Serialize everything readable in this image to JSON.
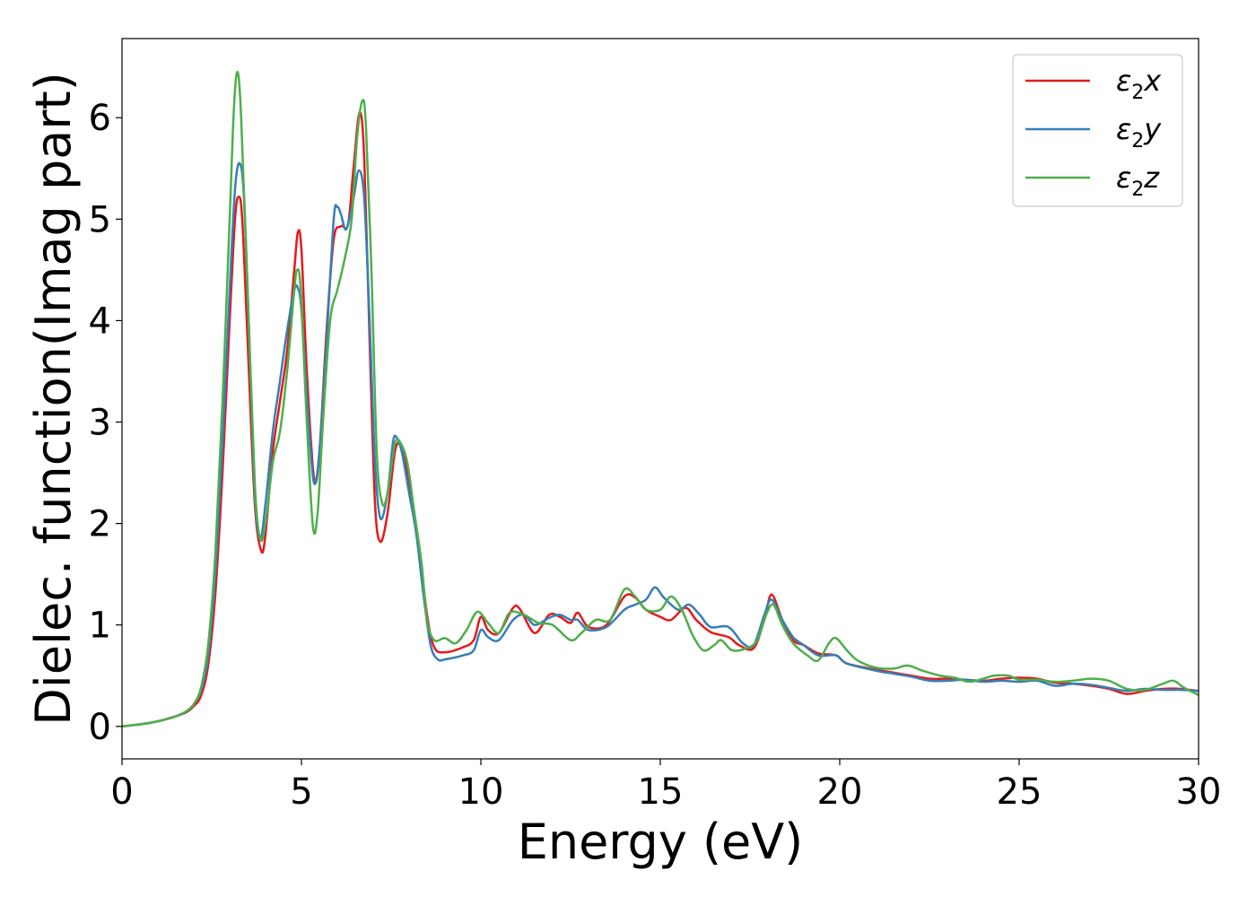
{
  "chart_data": {
    "type": "line",
    "title": "",
    "xlabel": "Energy (eV)",
    "ylabel": "Dielec. function(Imag part)",
    "xlim": [
      0,
      30
    ],
    "ylim": [
      -0.32,
      6.78
    ],
    "xticks": [
      0,
      5,
      10,
      15,
      20,
      25,
      30
    ],
    "xtick_labels": [
      "0",
      "5",
      "10",
      "15",
      "20",
      "25",
      "30"
    ],
    "yticks": [
      0,
      1,
      2,
      3,
      4,
      5,
      6
    ],
    "ytick_labels": [
      "0",
      "1",
      "2",
      "3",
      "4",
      "5",
      "6"
    ],
    "grid": false,
    "legend_position": "top-right",
    "series": [
      {
        "name": "ε₂x",
        "legend_main": "ε",
        "legend_sub": "2",
        "legend_tail": "x",
        "color": "#e41a1c",
        "points": [
          [
            0,
            0
          ],
          [
            0.5,
            0.02
          ],
          [
            1.0,
            0.05
          ],
          [
            1.5,
            0.1
          ],
          [
            1.8,
            0.14
          ],
          [
            2.0,
            0.2
          ],
          [
            2.2,
            0.3
          ],
          [
            2.4,
            0.6
          ],
          [
            2.6,
            1.3
          ],
          [
            2.8,
            2.5
          ],
          [
            3.0,
            4.0
          ],
          [
            3.15,
            5.0
          ],
          [
            3.25,
            5.22
          ],
          [
            3.35,
            5.0
          ],
          [
            3.5,
            3.8
          ],
          [
            3.7,
            2.2
          ],
          [
            3.88,
            1.73
          ],
          [
            4.0,
            1.9
          ],
          [
            4.2,
            2.7
          ],
          [
            4.4,
            3.2
          ],
          [
            4.6,
            3.7
          ],
          [
            4.8,
            4.5
          ],
          [
            4.9,
            4.87
          ],
          [
            5.0,
            4.7
          ],
          [
            5.15,
            3.5
          ],
          [
            5.35,
            2.45
          ],
          [
            5.5,
            2.7
          ],
          [
            5.7,
            3.9
          ],
          [
            5.9,
            4.8
          ],
          [
            6.1,
            4.93
          ],
          [
            6.3,
            4.95
          ],
          [
            6.45,
            5.5
          ],
          [
            6.62,
            6.05
          ],
          [
            6.75,
            5.6
          ],
          [
            6.9,
            3.8
          ],
          [
            7.05,
            2.2
          ],
          [
            7.2,
            1.82
          ],
          [
            7.4,
            2.1
          ],
          [
            7.6,
            2.7
          ],
          [
            7.75,
            2.78
          ],
          [
            7.9,
            2.6
          ],
          [
            8.1,
            2.2
          ],
          [
            8.3,
            1.7
          ],
          [
            8.5,
            1.1
          ],
          [
            8.7,
            0.78
          ],
          [
            9.0,
            0.73
          ],
          [
            9.5,
            0.78
          ],
          [
            9.8,
            0.85
          ],
          [
            10.0,
            1.08
          ],
          [
            10.2,
            0.95
          ],
          [
            10.5,
            0.92
          ],
          [
            10.9,
            1.17
          ],
          [
            11.1,
            1.15
          ],
          [
            11.5,
            0.92
          ],
          [
            11.9,
            1.1
          ],
          [
            12.2,
            1.08
          ],
          [
            12.5,
            1.02
          ],
          [
            12.7,
            1.12
          ],
          [
            13.0,
            0.98
          ],
          [
            13.5,
            1.0
          ],
          [
            14.0,
            1.28
          ],
          [
            14.3,
            1.27
          ],
          [
            14.6,
            1.15
          ],
          [
            15.0,
            1.08
          ],
          [
            15.3,
            1.05
          ],
          [
            15.7,
            1.17
          ],
          [
            16.0,
            1.05
          ],
          [
            16.4,
            0.93
          ],
          [
            16.9,
            0.88
          ],
          [
            17.2,
            0.8
          ],
          [
            17.6,
            0.77
          ],
          [
            17.9,
            1.05
          ],
          [
            18.1,
            1.3
          ],
          [
            18.4,
            1.05
          ],
          [
            18.7,
            0.85
          ],
          [
            19.0,
            0.8
          ],
          [
            19.4,
            0.72
          ],
          [
            19.9,
            0.7
          ],
          [
            20.2,
            0.62
          ],
          [
            21.0,
            0.56
          ],
          [
            21.5,
            0.53
          ],
          [
            22.0,
            0.5
          ],
          [
            22.5,
            0.47
          ],
          [
            23.0,
            0.47
          ],
          [
            23.5,
            0.46
          ],
          [
            24.0,
            0.45
          ],
          [
            24.5,
            0.47
          ],
          [
            25.0,
            0.48
          ],
          [
            25.5,
            0.47
          ],
          [
            26.0,
            0.43
          ],
          [
            26.5,
            0.42
          ],
          [
            27.0,
            0.4
          ],
          [
            27.5,
            0.37
          ],
          [
            28.0,
            0.32
          ],
          [
            28.5,
            0.35
          ],
          [
            29.0,
            0.37
          ],
          [
            29.5,
            0.37
          ],
          [
            30.0,
            0.35
          ]
        ]
      },
      {
        "name": "ε₂y",
        "legend_main": "ε",
        "legend_sub": "2",
        "legend_tail": "y",
        "color": "#377eb8",
        "points": [
          [
            0,
            0
          ],
          [
            0.5,
            0.02
          ],
          [
            1.0,
            0.05
          ],
          [
            1.5,
            0.1
          ],
          [
            1.8,
            0.15
          ],
          [
            2.0,
            0.22
          ],
          [
            2.2,
            0.35
          ],
          [
            2.4,
            0.7
          ],
          [
            2.6,
            1.5
          ],
          [
            2.8,
            2.8
          ],
          [
            3.0,
            4.3
          ],
          [
            3.15,
            5.3
          ],
          [
            3.28,
            5.55
          ],
          [
            3.4,
            5.2
          ],
          [
            3.55,
            3.8
          ],
          [
            3.7,
            2.3
          ],
          [
            3.85,
            1.85
          ],
          [
            4.0,
            2.2
          ],
          [
            4.2,
            2.9
          ],
          [
            4.4,
            3.4
          ],
          [
            4.6,
            3.9
          ],
          [
            4.8,
            4.3
          ],
          [
            4.9,
            4.32
          ],
          [
            5.0,
            4.1
          ],
          [
            5.2,
            3.0
          ],
          [
            5.35,
            2.4
          ],
          [
            5.5,
            2.7
          ],
          [
            5.7,
            3.8
          ],
          [
            5.9,
            5.0
          ],
          [
            6.0,
            5.12
          ],
          [
            6.1,
            5.05
          ],
          [
            6.25,
            4.9
          ],
          [
            6.45,
            5.2
          ],
          [
            6.6,
            5.48
          ],
          [
            6.75,
            5.2
          ],
          [
            6.9,
            4.0
          ],
          [
            7.05,
            2.6
          ],
          [
            7.2,
            2.05
          ],
          [
            7.4,
            2.3
          ],
          [
            7.55,
            2.8
          ],
          [
            7.65,
            2.85
          ],
          [
            7.8,
            2.7
          ],
          [
            8.0,
            2.3
          ],
          [
            8.2,
            1.9
          ],
          [
            8.4,
            1.3
          ],
          [
            8.6,
            0.8
          ],
          [
            8.8,
            0.66
          ],
          [
            9.0,
            0.66
          ],
          [
            9.5,
            0.7
          ],
          [
            9.8,
            0.75
          ],
          [
            10.0,
            0.95
          ],
          [
            10.2,
            0.88
          ],
          [
            10.5,
            0.85
          ],
          [
            10.9,
            1.05
          ],
          [
            11.2,
            1.1
          ],
          [
            11.5,
            1.0
          ],
          [
            11.9,
            1.07
          ],
          [
            12.2,
            1.1
          ],
          [
            12.5,
            1.05
          ],
          [
            12.7,
            1.05
          ],
          [
            13.0,
            0.95
          ],
          [
            13.5,
            0.98
          ],
          [
            14.0,
            1.15
          ],
          [
            14.3,
            1.2
          ],
          [
            14.6,
            1.25
          ],
          [
            14.85,
            1.37
          ],
          [
            15.1,
            1.27
          ],
          [
            15.5,
            1.15
          ],
          [
            15.8,
            1.2
          ],
          [
            16.1,
            1.1
          ],
          [
            16.4,
            0.98
          ],
          [
            16.9,
            0.98
          ],
          [
            17.3,
            0.82
          ],
          [
            17.6,
            0.8
          ],
          [
            17.9,
            1.1
          ],
          [
            18.1,
            1.25
          ],
          [
            18.4,
            1.05
          ],
          [
            18.7,
            0.88
          ],
          [
            19.0,
            0.8
          ],
          [
            19.4,
            0.7
          ],
          [
            19.9,
            0.7
          ],
          [
            20.2,
            0.62
          ],
          [
            21.0,
            0.55
          ],
          [
            21.5,
            0.52
          ],
          [
            22.0,
            0.49
          ],
          [
            22.5,
            0.45
          ],
          [
            23.0,
            0.45
          ],
          [
            23.5,
            0.46
          ],
          [
            24.0,
            0.44
          ],
          [
            24.5,
            0.45
          ],
          [
            25.0,
            0.44
          ],
          [
            25.5,
            0.45
          ],
          [
            26.0,
            0.4
          ],
          [
            26.5,
            0.42
          ],
          [
            27.0,
            0.41
          ],
          [
            27.5,
            0.38
          ],
          [
            28.0,
            0.35
          ],
          [
            28.5,
            0.37
          ],
          [
            29.0,
            0.36
          ],
          [
            29.5,
            0.36
          ],
          [
            30.0,
            0.35
          ]
        ]
      },
      {
        "name": "ε₂z",
        "legend_main": "ε",
        "legend_sub": "2",
        "legend_tail": "z",
        "color": "#4daf4a",
        "points": [
          [
            0,
            0
          ],
          [
            0.5,
            0.02
          ],
          [
            1.0,
            0.05
          ],
          [
            1.5,
            0.1
          ],
          [
            1.8,
            0.15
          ],
          [
            2.0,
            0.22
          ],
          [
            2.2,
            0.38
          ],
          [
            2.4,
            0.8
          ],
          [
            2.6,
            1.7
          ],
          [
            2.8,
            3.2
          ],
          [
            3.0,
            5.0
          ],
          [
            3.12,
            6.1
          ],
          [
            3.22,
            6.45
          ],
          [
            3.32,
            6.0
          ],
          [
            3.5,
            4.3
          ],
          [
            3.7,
            2.4
          ],
          [
            3.85,
            1.85
          ],
          [
            4.0,
            2.0
          ],
          [
            4.2,
            2.6
          ],
          [
            4.4,
            2.9
          ],
          [
            4.6,
            3.5
          ],
          [
            4.8,
            4.3
          ],
          [
            4.88,
            4.5
          ],
          [
            4.98,
            4.3
          ],
          [
            5.15,
            3.0
          ],
          [
            5.32,
            1.97
          ],
          [
            5.45,
            2.1
          ],
          [
            5.6,
            3.0
          ],
          [
            5.8,
            4.0
          ],
          [
            6.0,
            4.3
          ],
          [
            6.2,
            4.6
          ],
          [
            6.4,
            5.0
          ],
          [
            6.55,
            5.8
          ],
          [
            6.7,
            6.17
          ],
          [
            6.8,
            5.9
          ],
          [
            6.95,
            4.5
          ],
          [
            7.1,
            2.7
          ],
          [
            7.25,
            2.2
          ],
          [
            7.4,
            2.3
          ],
          [
            7.6,
            2.78
          ],
          [
            7.75,
            2.8
          ],
          [
            7.95,
            2.6
          ],
          [
            8.15,
            2.1
          ],
          [
            8.35,
            1.6
          ],
          [
            8.5,
            1.05
          ],
          [
            8.7,
            0.85
          ],
          [
            9.0,
            0.87
          ],
          [
            9.3,
            0.82
          ],
          [
            9.6,
            0.95
          ],
          [
            9.9,
            1.13
          ],
          [
            10.2,
            1.02
          ],
          [
            10.5,
            0.92
          ],
          [
            10.8,
            1.12
          ],
          [
            11.2,
            1.1
          ],
          [
            11.6,
            1.02
          ],
          [
            12.0,
            1.0
          ],
          [
            12.5,
            0.85
          ],
          [
            12.8,
            0.92
          ],
          [
            13.2,
            1.05
          ],
          [
            13.6,
            1.05
          ],
          [
            14.0,
            1.35
          ],
          [
            14.3,
            1.28
          ],
          [
            14.6,
            1.15
          ],
          [
            15.0,
            1.15
          ],
          [
            15.3,
            1.28
          ],
          [
            15.6,
            1.15
          ],
          [
            15.9,
            0.9
          ],
          [
            16.2,
            0.75
          ],
          [
            16.5,
            0.8
          ],
          [
            16.7,
            0.85
          ],
          [
            17.0,
            0.75
          ],
          [
            17.4,
            0.77
          ],
          [
            17.7,
            0.85
          ],
          [
            17.95,
            1.1
          ],
          [
            18.15,
            1.2
          ],
          [
            18.4,
            1.0
          ],
          [
            18.7,
            0.82
          ],
          [
            19.1,
            0.7
          ],
          [
            19.4,
            0.65
          ],
          [
            19.7,
            0.82
          ],
          [
            19.9,
            0.87
          ],
          [
            20.2,
            0.75
          ],
          [
            20.5,
            0.65
          ],
          [
            21.0,
            0.58
          ],
          [
            21.5,
            0.57
          ],
          [
            21.9,
            0.6
          ],
          [
            22.3,
            0.55
          ],
          [
            22.8,
            0.5
          ],
          [
            23.2,
            0.48
          ],
          [
            23.6,
            0.44
          ],
          [
            24.0,
            0.47
          ],
          [
            24.3,
            0.5
          ],
          [
            24.7,
            0.5
          ],
          [
            25.0,
            0.46
          ],
          [
            25.5,
            0.46
          ],
          [
            26.0,
            0.44
          ],
          [
            26.5,
            0.45
          ],
          [
            27.0,
            0.47
          ],
          [
            27.5,
            0.45
          ],
          [
            28.0,
            0.37
          ],
          [
            28.5,
            0.36
          ],
          [
            29.0,
            0.42
          ],
          [
            29.3,
            0.45
          ],
          [
            29.6,
            0.38
          ],
          [
            30.0,
            0.31
          ]
        ]
      }
    ]
  }
}
